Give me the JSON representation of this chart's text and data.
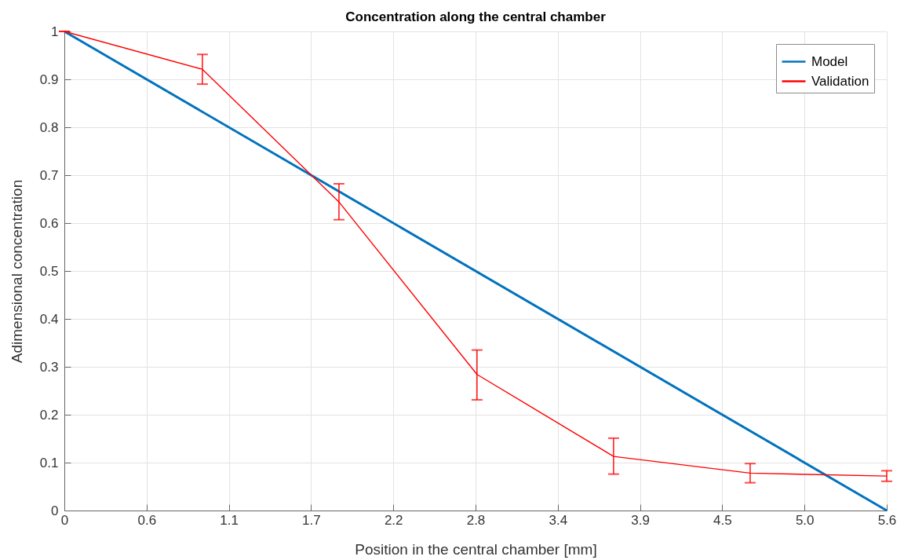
{
  "chart_data": {
    "type": "line",
    "title": "Concentration along the central chamber",
    "xlabel": "Position in the central chamber [mm]",
    "ylabel": "Adimensional concentration",
    "series": [
      {
        "name": "Model",
        "color": "#0072bd",
        "x": [
          0,
          5.6
        ],
        "values": [
          1,
          0
        ]
      },
      {
        "name": "Validation",
        "color": "#ff0000",
        "x": [
          0,
          0.94,
          1.87,
          2.81,
          3.74,
          4.67,
          5.6
        ],
        "values": [
          1,
          0.921,
          0.644,
          0.284,
          0.113,
          0.078,
          0.072
        ],
        "errors": [
          0,
          [
            0.89,
            0.952
          ],
          [
            0.607,
            0.682
          ],
          [
            0.231,
            0.335
          ],
          [
            0.076,
            0.151
          ],
          [
            0.058,
            0.098
          ],
          [
            0.061,
            0.083
          ]
        ]
      }
    ],
    "xlim": [
      0,
      5.6
    ],
    "xticks": [
      0,
      {
        "value": 0.56,
        "label": "0.6"
      },
      {
        "value": 1.12,
        "label": "1.1"
      },
      {
        "value": 1.68,
        "label": "1.7"
      },
      {
        "value": 2.24,
        "label": "2.2"
      },
      2.8,
      {
        "value": 3.36,
        "label": "3.4"
      },
      {
        "value": 3.92,
        "label": "3.9"
      },
      {
        "value": 4.48,
        "label": "4.5"
      },
      {
        "value": 5.04,
        "label": "5.0"
      },
      5.6
    ],
    "ylim": [
      0,
      1
    ],
    "yticks": [
      0,
      0.1,
      0.2,
      0.3,
      0.4,
      0.5,
      0.6,
      0.7,
      0.8,
      0.9,
      1
    ],
    "grid": true,
    "legend": "top right"
  }
}
